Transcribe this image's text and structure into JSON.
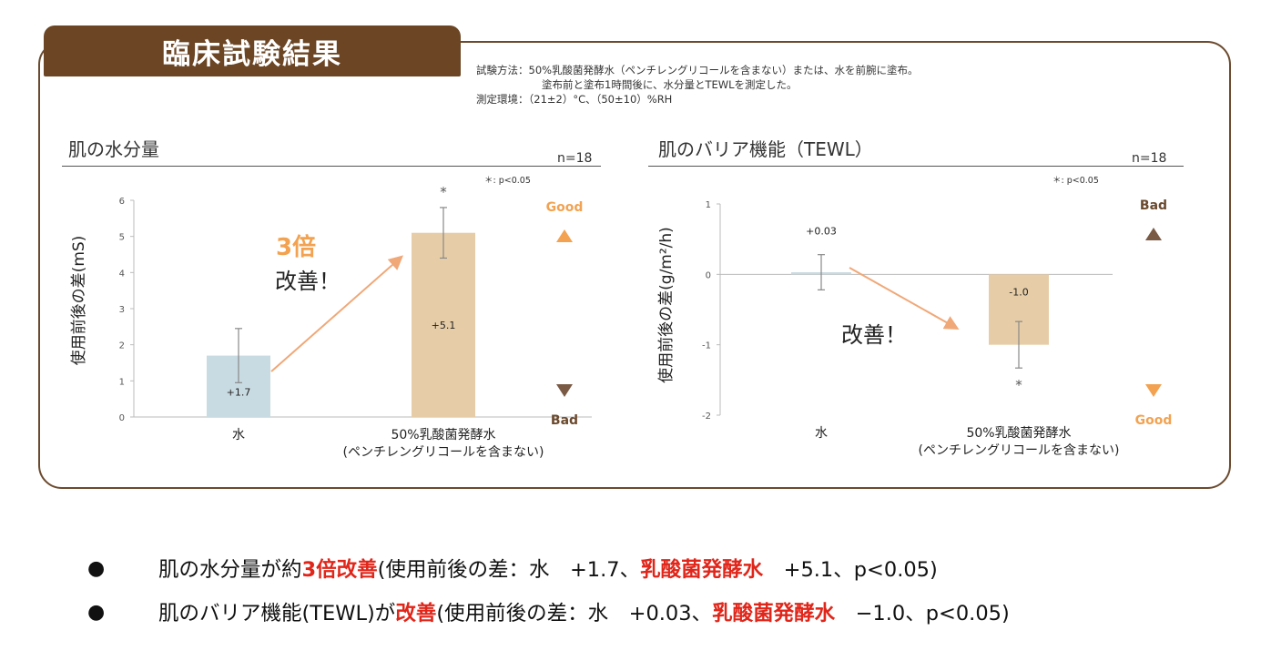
{
  "header": {
    "badge": "臨床試験結果",
    "method_line1": "試験方法：50%乳酸菌発酵水（ペンチレングリコールを含まない）または、水を前腕に塗布。",
    "method_line2": "塗布前と塗布1時間後に、水分量とTEWLを測定した。",
    "method_line3": "測定環境：（21±2）°C、（50±10）%RH"
  },
  "left_note": {
    "big": "3倍",
    "small": "改善！"
  },
  "right_note": "改善！",
  "colors": {
    "water_bar": "#c9dbe2",
    "lactic_bar": "#e6cda7",
    "arrow": "#f0a878",
    "brown": "#6b4524",
    "orange": "#f2a250",
    "red": "#e0261a"
  },
  "chart_data": [
    {
      "type": "bar",
      "title": "肌の水分量",
      "n_label": "n=18",
      "p_label": "＊: p<0.05",
      "ylabel": "使用前後の差(mS)",
      "ylim": [
        0,
        6
      ],
      "yticks": [
        "0",
        "1",
        "2",
        "3",
        "4",
        "5",
        "6"
      ],
      "categories": [
        "水",
        "50%乳酸菌発酵水"
      ],
      "category_sub": [
        "",
        "(ペンチレングリコールを含まない)"
      ],
      "values": [
        1.7,
        5.1
      ],
      "error": [
        0.75,
        0.7
      ],
      "value_labels": [
        "+1.7",
        "+5.1"
      ],
      "significance": [
        "",
        "*"
      ],
      "direction": {
        "top": "Good",
        "bottom": "Bad"
      }
    },
    {
      "type": "bar",
      "title": "肌のバリア機能（TEWL）",
      "n_label": "n=18",
      "p_label": "＊: p<0.05",
      "ylabel": "使用前後の差(g/m²/h)",
      "ylim": [
        -2,
        1
      ],
      "yticks": [
        "-2",
        "-1",
        "0",
        "1"
      ],
      "categories": [
        "水",
        "50%乳酸菌発酵水"
      ],
      "category_sub": [
        "",
        "(ペンチレングリコールを含まない)"
      ],
      "values": [
        0.03,
        -1.0
      ],
      "error": [
        0.25,
        0.33
      ],
      "value_labels": [
        "+0.03",
        "-1.0"
      ],
      "significance": [
        "",
        "*"
      ],
      "direction": {
        "top": "Bad",
        "bottom": "Good"
      }
    }
  ],
  "bullets": [
    {
      "a": "肌の水分量が約",
      "b": "3倍改善",
      "c": "(使用前後の差：水　+1.7、",
      "d": "乳酸菌発酵水",
      "e": "　+5.1、p<0.05)"
    },
    {
      "a": "肌のバリア機能(TEWL)が",
      "b": "改善",
      "c": "(使用前後の差：水　+0.03、",
      "d": "乳酸菌発酵水",
      "e": "　−1.0、p<0.05)"
    }
  ]
}
